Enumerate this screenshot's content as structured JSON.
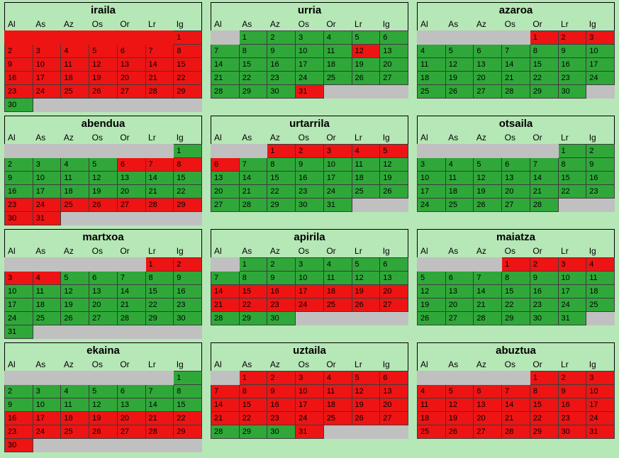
{
  "page": {
    "background": "#b6e7b6"
  },
  "colors": {
    "green_day": "#2fa839",
    "red_day": "#ee1414",
    "empty_cell": "#c0c0c0",
    "cell_border": "#3c3c3c"
  },
  "weekday_headers": [
    "Al",
    "As",
    "Az",
    "Os",
    "Or",
    "Lr",
    "Ig"
  ],
  "months": [
    {
      "name": "iraila",
      "weeks": [
        [
          "r",
          "r",
          "r",
          "r",
          "r",
          "r",
          "1r"
        ],
        [
          "2r",
          "3r",
          "4r",
          "5r",
          "6r",
          "7r",
          "8r"
        ],
        [
          "9r",
          "10r",
          "11r",
          "12r",
          "13r",
          "14r",
          "15r"
        ],
        [
          "16r",
          "17r",
          "18r",
          "19r",
          "20r",
          "21r",
          "22r"
        ],
        [
          "23r",
          "24r",
          "25r",
          "26r",
          "27r",
          "28r",
          "29r"
        ],
        [
          "30g",
          "",
          "",
          "",
          "",
          "",
          ""
        ]
      ]
    },
    {
      "name": "urria",
      "weeks": [
        [
          "",
          "1g",
          "2g",
          "3g",
          "4g",
          "5g",
          "6g"
        ],
        [
          "7g",
          "8g",
          "9g",
          "10g",
          "11g",
          "12r",
          "13g"
        ],
        [
          "14g",
          "15g",
          "16g",
          "17g",
          "18g",
          "19g",
          "20g"
        ],
        [
          "21g",
          "22g",
          "23g",
          "24g",
          "25g",
          "26g",
          "27g"
        ],
        [
          "28g",
          "29g",
          "30g",
          "31r",
          "",
          "",
          ""
        ]
      ]
    },
    {
      "name": "azaroa",
      "weeks": [
        [
          "",
          "",
          "",
          "",
          "1r",
          "2r",
          "3r"
        ],
        [
          "4g",
          "5g",
          "6g",
          "7g",
          "8g",
          "9g",
          "10g"
        ],
        [
          "11g",
          "12g",
          "13g",
          "14g",
          "15g",
          "16g",
          "17g"
        ],
        [
          "18g",
          "19g",
          "20g",
          "21g",
          "22g",
          "23g",
          "24g"
        ],
        [
          "25g",
          "26g",
          "27g",
          "28g",
          "29g",
          "30g",
          ""
        ]
      ]
    },
    {
      "name": "abendua",
      "weeks": [
        [
          "",
          "",
          "",
          "",
          "",
          "",
          "1g"
        ],
        [
          "2g",
          "3g",
          "4g",
          "5g",
          "6r",
          "7r",
          "8r"
        ],
        [
          "9g",
          "10g",
          "11g",
          "12g",
          "13g",
          "14g",
          "15g"
        ],
        [
          "16g",
          "17g",
          "18g",
          "19g",
          "20g",
          "21g",
          "22g"
        ],
        [
          "23r",
          "24r",
          "25r",
          "26r",
          "27r",
          "28r",
          "29r"
        ],
        [
          "30r",
          "31r",
          "",
          "",
          "",
          "",
          ""
        ]
      ]
    },
    {
      "name": "urtarrila",
      "weeks": [
        [
          "",
          "",
          "1r",
          "2r",
          "3r",
          "4r",
          "5r"
        ],
        [
          "6r",
          "7g",
          "8g",
          "9g",
          "10g",
          "11g",
          "12g"
        ],
        [
          "13g",
          "14g",
          "15g",
          "16g",
          "17g",
          "18g",
          "19g"
        ],
        [
          "20g",
          "21g",
          "22g",
          "23g",
          "24g",
          "25g",
          "26g"
        ],
        [
          "27g",
          "28g",
          "29g",
          "30g",
          "31g",
          "",
          ""
        ]
      ]
    },
    {
      "name": "otsaila",
      "weeks": [
        [
          "",
          "",
          "",
          "",
          "",
          "1g",
          "2g"
        ],
        [
          "3g",
          "4g",
          "5g",
          "6g",
          "7g",
          "8g",
          "9g"
        ],
        [
          "10g",
          "11g",
          "12g",
          "13g",
          "14g",
          "15g",
          "16g"
        ],
        [
          "17g",
          "18g",
          "19g",
          "20g",
          "21g",
          "22g",
          "23g"
        ],
        [
          "24g",
          "25g",
          "26g",
          "27g",
          "28g",
          "",
          ""
        ]
      ]
    },
    {
      "name": "martxoa",
      "weeks": [
        [
          "",
          "",
          "",
          "",
          "",
          "1r",
          "2r"
        ],
        [
          "3r",
          "4r",
          "5g",
          "6g",
          "7g",
          "8g",
          "9g"
        ],
        [
          "10g",
          "11g",
          "12g",
          "13g",
          "14g",
          "15g",
          "16g"
        ],
        [
          "17g",
          "18g",
          "19g",
          "20g",
          "21g",
          "22g",
          "23g"
        ],
        [
          "24g",
          "25g",
          "26g",
          "27g",
          "28g",
          "29g",
          "30g"
        ],
        [
          "31g",
          "",
          "",
          "",
          "",
          "",
          ""
        ]
      ]
    },
    {
      "name": "apirila",
      "weeks": [
        [
          "",
          "1g",
          "2g",
          "3g",
          "4g",
          "5g",
          "6g"
        ],
        [
          "7g",
          "8g",
          "9g",
          "10g",
          "11g",
          "12g",
          "13g"
        ],
        [
          "14r",
          "15r",
          "16r",
          "17r",
          "18r",
          "19r",
          "20r"
        ],
        [
          "21r",
          "22r",
          "23r",
          "24r",
          "25r",
          "26r",
          "27r"
        ],
        [
          "28g",
          "29g",
          "30g",
          "",
          "",
          "",
          ""
        ]
      ]
    },
    {
      "name": "maiatza",
      "weeks": [
        [
          "",
          "",
          "",
          "1r",
          "2r",
          "3r",
          "4r"
        ],
        [
          "5g",
          "6g",
          "7g",
          "8g",
          "9g",
          "10g",
          "11g"
        ],
        [
          "12g",
          "13g",
          "14g",
          "15g",
          "16g",
          "17g",
          "18g"
        ],
        [
          "19g",
          "20g",
          "21g",
          "22g",
          "23g",
          "24g",
          "25g"
        ],
        [
          "26g",
          "27g",
          "28g",
          "29g",
          "30g",
          "31g",
          ""
        ]
      ]
    },
    {
      "name": "ekaina",
      "weeks": [
        [
          "",
          "",
          "",
          "",
          "",
          "",
          "1g"
        ],
        [
          "2g",
          "3g",
          "4g",
          "5g",
          "6g",
          "7g",
          "8g"
        ],
        [
          "9g",
          "10g",
          "11g",
          "12g",
          "13g",
          "14g",
          "15g"
        ],
        [
          "16r",
          "17r",
          "18r",
          "19r",
          "20r",
          "21r",
          "22r"
        ],
        [
          "23r",
          "24r",
          "25r",
          "26r",
          "27r",
          "28r",
          "29r"
        ],
        [
          "30r",
          "",
          "",
          "",
          "",
          "",
          ""
        ]
      ]
    },
    {
      "name": "uztaila",
      "weeks": [
        [
          "",
          "1r",
          "2r",
          "3r",
          "4r",
          "5r",
          "6r"
        ],
        [
          "7r",
          "8r",
          "9r",
          "10r",
          "11r",
          "12r",
          "13r"
        ],
        [
          "14r",
          "15r",
          "16r",
          "17r",
          "18r",
          "19r",
          "20r"
        ],
        [
          "21r",
          "22r",
          "23r",
          "24r",
          "25r",
          "26r",
          "27r"
        ],
        [
          "28g",
          "29g",
          "30g",
          "31r",
          "",
          "",
          ""
        ]
      ]
    },
    {
      "name": "abuztua",
      "weeks": [
        [
          "",
          "",
          "",
          "",
          "1r",
          "2r",
          "3r"
        ],
        [
          "4r",
          "5r",
          "6r",
          "7r",
          "8r",
          "9r",
          "10r"
        ],
        [
          "11r",
          "12r",
          "13r",
          "14r",
          "15r",
          "16r",
          "17r"
        ],
        [
          "18r",
          "19r",
          "20r",
          "21r",
          "22r",
          "23r",
          "24r"
        ],
        [
          "25r",
          "26r",
          "27r",
          "28r",
          "29r",
          "30r",
          "31r"
        ]
      ]
    }
  ]
}
